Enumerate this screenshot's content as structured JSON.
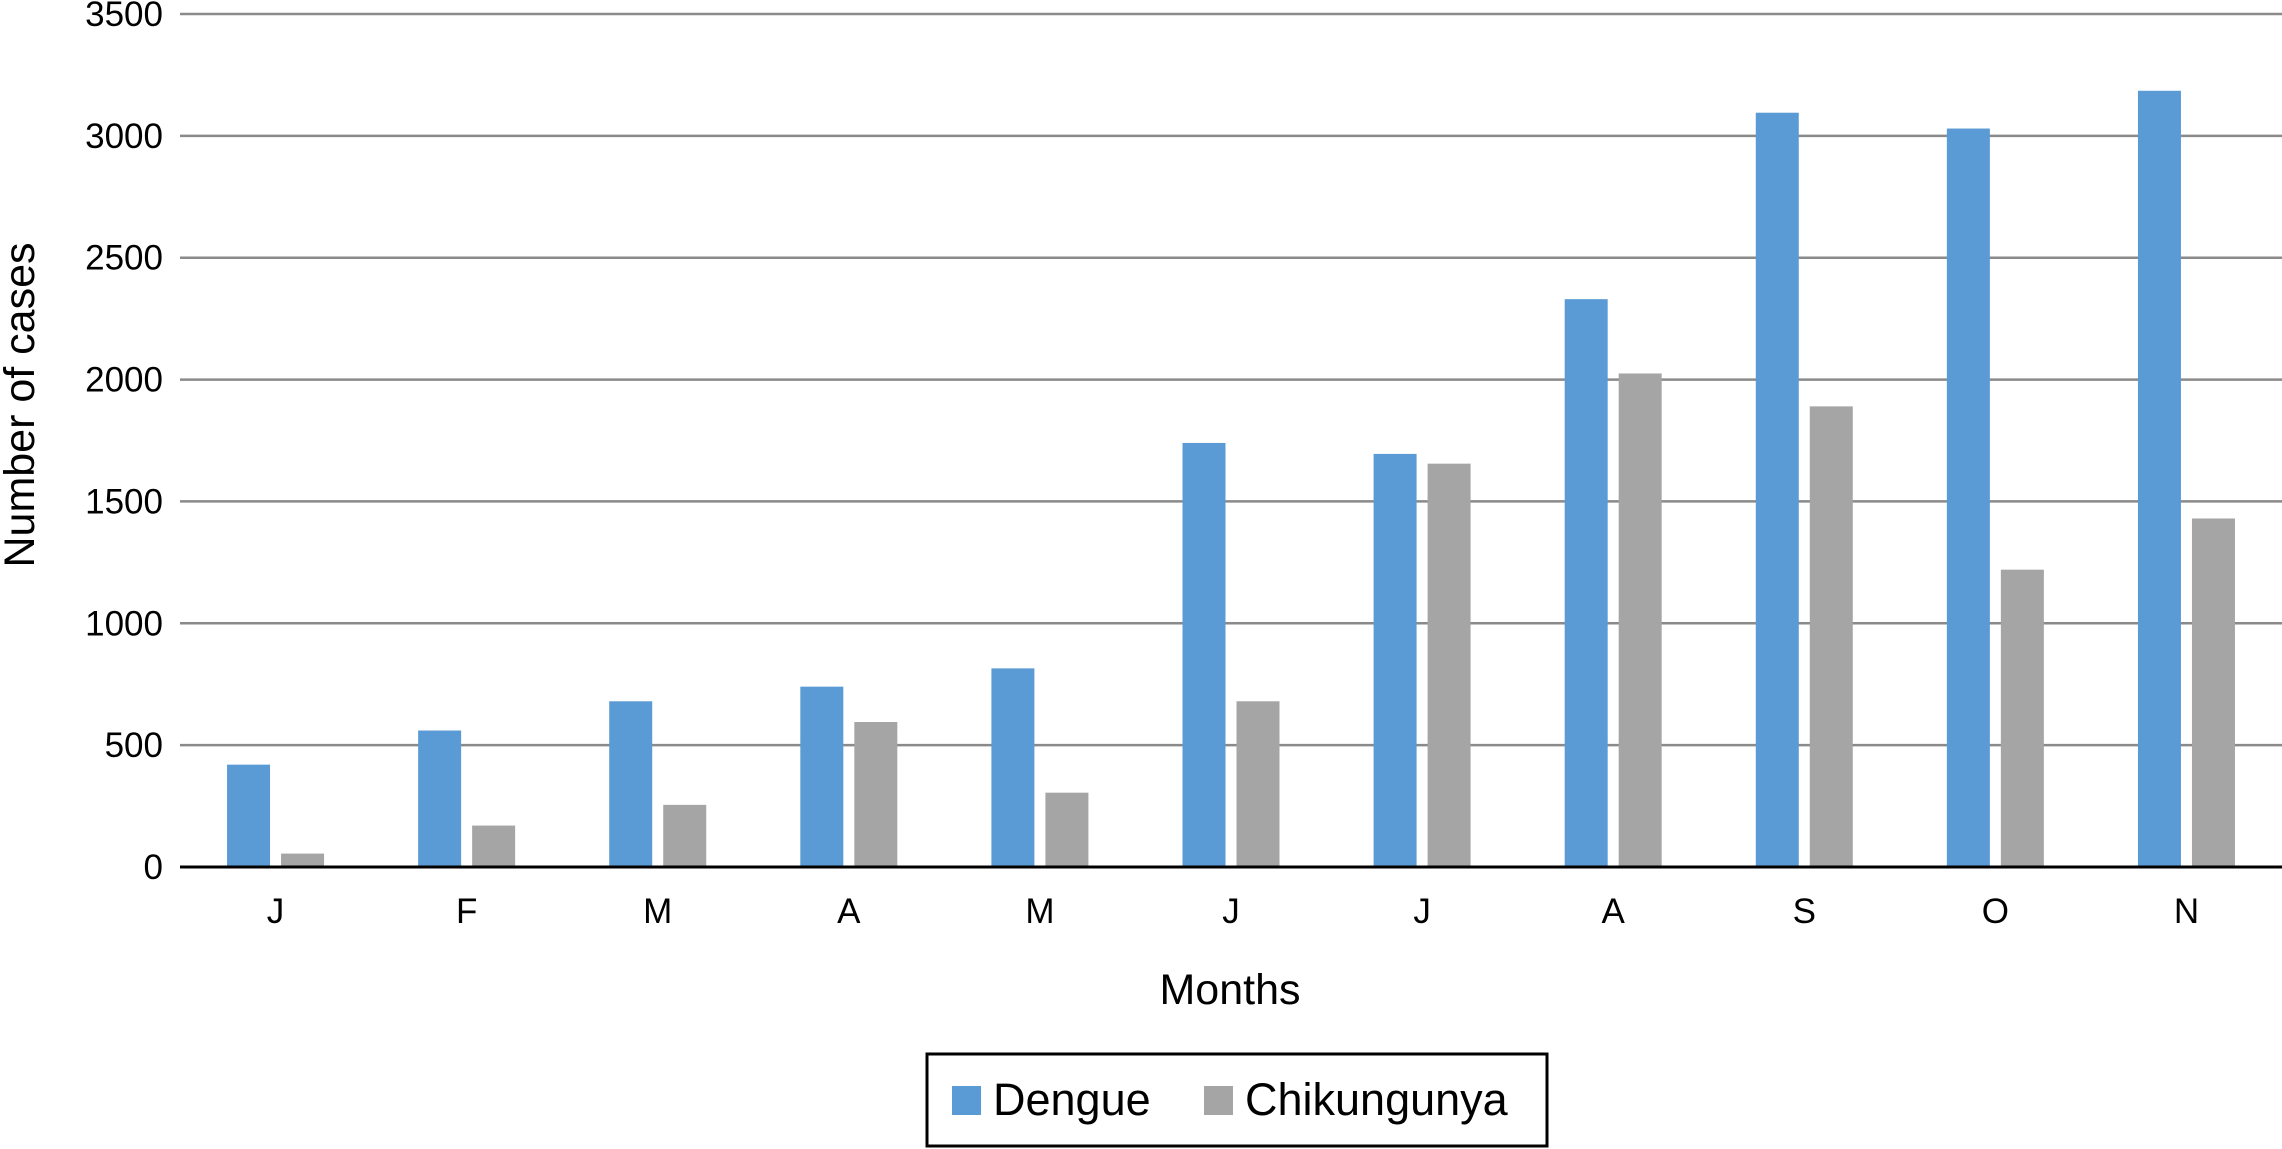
{
  "chart_data": {
    "type": "bar",
    "title": "",
    "xlabel": "Months",
    "ylabel": "Number of cases",
    "categories": [
      "J",
      "F",
      "M",
      "A",
      "M",
      "J",
      "J",
      "A",
      "S",
      "O",
      "N"
    ],
    "series": [
      {
        "name": "Dengue",
        "color": "#5b9bd5",
        "values": [
          420,
          560,
          680,
          740,
          815,
          1740,
          1695,
          2330,
          3095,
          3030,
          3185
        ]
      },
      {
        "name": "Chikungunya",
        "color": "#a5a5a5",
        "values": [
          55,
          170,
          255,
          595,
          305,
          680,
          1655,
          2025,
          1890,
          1220,
          1430
        ]
      }
    ],
    "ylim": [
      0,
      3500
    ],
    "yticks": [
      "0",
      "500",
      "1000",
      "1500",
      "2000",
      "2500",
      "3000",
      "3500"
    ],
    "grid": true,
    "legend": "bottom-center"
  }
}
